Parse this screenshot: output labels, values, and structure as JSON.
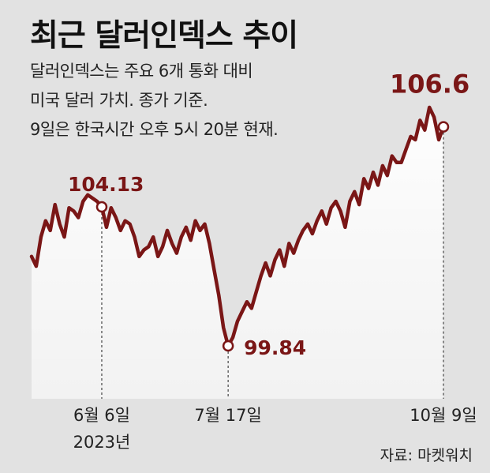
{
  "chart_data": {
    "type": "line",
    "title": "최근 달러인덱스 추이",
    "subtitle_lines": [
      "달러인덱스는 주요 6개 통화 대비",
      "미국 달러 가치. 종가 기준.",
      "9일은 한국시간 오후 5시 20분 현재."
    ],
    "series": [
      {
        "values": [
          102.6,
          102.3,
          103.2,
          103.7,
          103.4,
          104.2,
          103.6,
          103.2,
          104.1,
          104.0,
          103.8,
          104.3,
          104.5,
          104.4,
          104.3,
          104.13,
          103.5,
          104.1,
          103.8,
          103.4,
          103.7,
          103.6,
          103.2,
          102.6,
          102.8,
          102.9,
          103.2,
          102.6,
          102.9,
          103.4,
          103.0,
          102.7,
          103.2,
          103.5,
          103.1,
          103.7,
          103.4,
          103.6,
          103.0,
          102.2,
          101.4,
          100.4,
          99.84,
          100.1,
          100.6,
          100.9,
          101.2,
          101.0,
          101.5,
          102.0,
          102.4,
          102.0,
          102.5,
          102.8,
          102.3,
          103.0,
          102.7,
          103.1,
          103.4,
          103.6,
          103.3,
          103.7,
          104.0,
          103.6,
          104.1,
          104.3,
          104.0,
          103.5,
          104.3,
          104.6,
          104.2,
          105.0,
          104.7,
          105.2,
          104.8,
          105.4,
          105.1,
          105.7,
          105.5,
          105.5,
          105.9,
          106.3,
          106.2,
          106.8,
          106.5,
          107.2,
          106.9,
          106.2,
          106.6
        ]
      }
    ],
    "annotations": [
      {
        "index": 15,
        "label": "104.13"
      },
      {
        "index": 42,
        "label": "99.84"
      },
      {
        "index": 88,
        "label": "106.6"
      }
    ],
    "x_tick_labels": [
      {
        "index": 15,
        "lines": [
          "6월 6일",
          "2023년"
        ]
      },
      {
        "index": 42,
        "lines": [
          "7월 17일"
        ]
      },
      {
        "index": 88,
        "lines": [
          "10월 9일"
        ]
      }
    ],
    "colors": {
      "line": "#7a1616",
      "label": "#7a1616",
      "background": "#e2e2e2"
    }
  },
  "source": "자료: 마켓워치"
}
